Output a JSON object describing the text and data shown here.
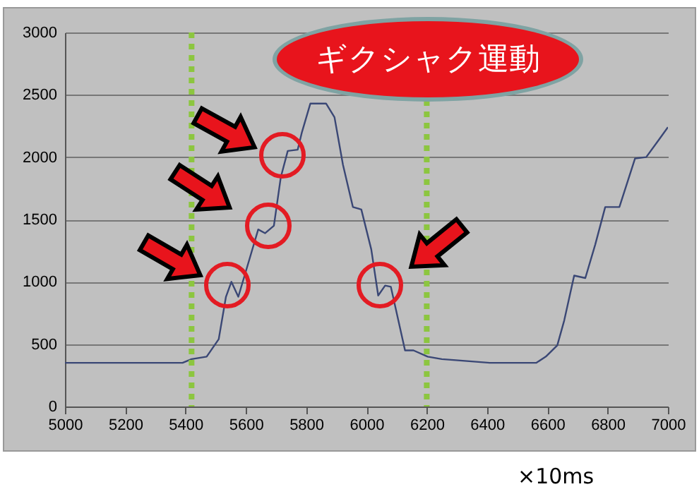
{
  "chart_data": {
    "type": "line",
    "xlabel": "×10ms",
    "annotations": [
      "ギクシャク運動"
    ],
    "series": [
      {
        "color": "#3a4775",
        "x": [
          5000,
          5390,
          5420,
          5470,
          5510,
          5534,
          5552,
          5575,
          5613,
          5641,
          5664,
          5693,
          5716,
          5739,
          5772,
          5786,
          5814,
          5866,
          5894,
          5922,
          5955,
          5983,
          6016,
          6039,
          6062,
          6081,
          6128,
          6156,
          6203,
          6250,
          6409,
          6563,
          6595,
          6633,
          6656,
          6689,
          6726,
          6759,
          6792,
          6839,
          6891,
          6928,
          6970,
          7000
        ],
        "values": [
          350,
          350,
          380,
          400,
          540,
          880,
          1000,
          880,
          1190,
          1420,
          1390,
          1450,
          1840,
          2050,
          2060,
          2200,
          2430,
          2430,
          2320,
          1940,
          1600,
          1580,
          1260,
          890,
          970,
          960,
          450,
          450,
          400,
          380,
          350,
          350,
          400,
          490,
          690,
          1050,
          1030,
          1300,
          1600,
          1600,
          1990,
          2000,
          2140,
          2240
        ]
      }
    ],
    "xlim": [
      5000,
      7000
    ],
    "xticks": [
      5000,
      5200,
      5400,
      5600,
      5800,
      6000,
      6200,
      6400,
      6600,
      6800,
      7000
    ],
    "ylim": [
      0,
      3000
    ],
    "yticks": [
      0,
      500,
      1000,
      1500,
      2000,
      2500,
      3000
    ],
    "grid": "y",
    "ref_lines": [
      {
        "axis": "x",
        "value": 5420,
        "color": "#8cc63f",
        "line_style": "dotted"
      },
      {
        "axis": "x",
        "value": 6200,
        "color": "#8cc63f",
        "line_style": "dotted"
      }
    ]
  }
}
